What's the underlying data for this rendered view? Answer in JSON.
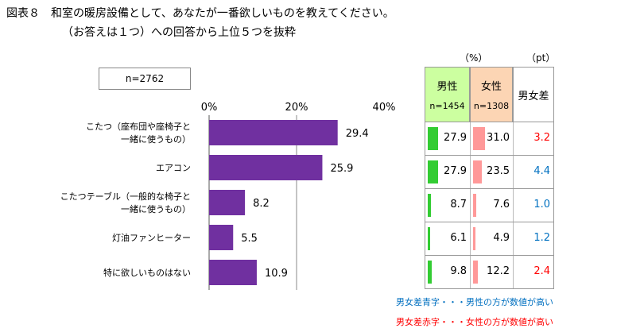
{
  "title": {
    "line1": "図表８　和室の暖房設備として、あなたが一番欲しいものを教えてください。",
    "line2": "（お答えは１つ）への回答から上位５つを抜粋"
  },
  "sample_label": "n=2762",
  "chart_data": {
    "type": "bar",
    "orientation": "horizontal",
    "categories": [
      [
        "こたつ（座布団や座椅子と",
        "一緒に使うもの）"
      ],
      [
        "エアコン"
      ],
      [
        "こたつテーブル（一般的な椅子と",
        "一緒に使うもの）"
      ],
      [
        "灯油ファンヒーター"
      ],
      [
        "特に欲しいものはない"
      ]
    ],
    "values": [
      29.4,
      25.9,
      8.2,
      5.5,
      10.9
    ],
    "value_labels": [
      "29.4",
      "25.9",
      "8.2",
      "5.5",
      "10.9"
    ],
    "xlim": [
      0,
      40
    ],
    "ticks": [
      0,
      20,
      40
    ],
    "tick_labels": [
      "0%",
      "20%",
      "40%"
    ],
    "bar_color": "#7030a0",
    "gridline_at": 20
  },
  "table": {
    "unit_pct": "（%）",
    "unit_pt": "（pt）",
    "headers": {
      "male": "男性",
      "male_n": "n=1454",
      "female": "女性",
      "female_n": "n=1308",
      "diff": "男女差"
    },
    "rows": [
      {
        "male": 27.9,
        "male_label": "27.9",
        "female": 31.0,
        "female_label": "31.0",
        "diff": "3.2",
        "diff_color": "#ff0000"
      },
      {
        "male": 27.9,
        "male_label": "27.9",
        "female": 23.5,
        "female_label": "23.5",
        "diff": "4.4",
        "diff_color": "#0070c0"
      },
      {
        "male": 8.7,
        "male_label": "8.7",
        "female": 7.6,
        "female_label": "7.6",
        "diff": "1.0",
        "diff_color": "#0070c0"
      },
      {
        "male": 6.1,
        "male_label": "6.1",
        "female": 4.9,
        "female_label": "4.9",
        "diff": "1.2",
        "diff_color": "#0070c0"
      },
      {
        "male": 9.8,
        "male_label": "9.8",
        "female": 12.2,
        "female_label": "12.2",
        "diff": "2.4",
        "diff_color": "#ff0000"
      }
    ],
    "male_bar_color": "#33cc33",
    "female_bar_color": "#ff9999",
    "mini_bar_max": 100
  },
  "legend": {
    "blue_text": "男女差青字・・・男性の方が数値が高い",
    "blue_color": "#0070c0",
    "red_text": "男女差赤字・・・女性の方が数値が高い",
    "red_color": "#ff0000"
  }
}
